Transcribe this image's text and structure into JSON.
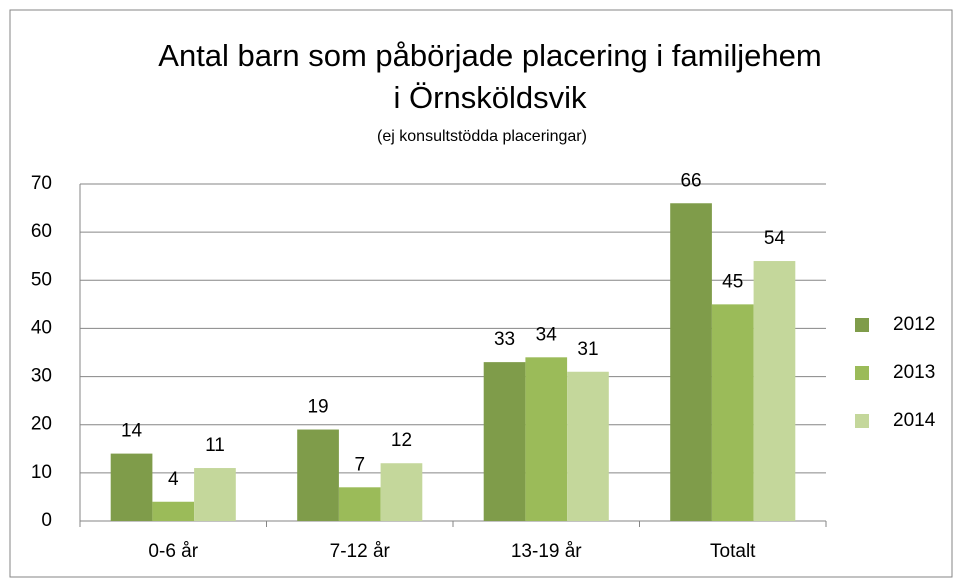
{
  "chart_data": {
    "type": "bar",
    "title": [
      "Antal barn som påbörjade placering i familjehem",
      "i Örnsköldsvik"
    ],
    "subtitle": "(ej konsultstödda placeringar)",
    "categories": [
      "0-6 år",
      "7-12 år",
      "13-19 år",
      "Totalt"
    ],
    "series": [
      {
        "name": "2012",
        "color": "#7f9c4a",
        "values": [
          14,
          19,
          33,
          66
        ]
      },
      {
        "name": "2013",
        "color": "#9bbb59",
        "values": [
          4,
          7,
          34,
          45
        ]
      },
      {
        "name": "2014",
        "color": "#c4d79b",
        "values": [
          11,
          12,
          31,
          54
        ]
      }
    ],
    "ylim": [
      0,
      70
    ],
    "yticks": [
      0,
      10,
      20,
      30,
      40,
      50,
      60,
      70
    ],
    "grid": true,
    "legend": "right"
  }
}
